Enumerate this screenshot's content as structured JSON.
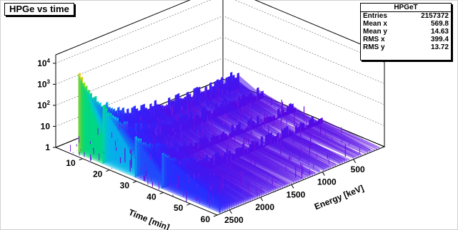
{
  "chart_data": {
    "type": "lego",
    "title": "HPGe vs time",
    "xlabel": "Energy [keV]",
    "ylabel": "Time [min]",
    "zscale": "log",
    "x_ticks": [
      "500",
      "1000",
      "1500",
      "2000",
      "2500"
    ],
    "y_ticks": [
      "10",
      "20",
      "30",
      "40",
      "50",
      "60"
    ],
    "z_ticks": [
      {
        "base": "1",
        "exp": ""
      },
      {
        "base": "10",
        "exp": ""
      },
      {
        "base": "10",
        "exp": "2"
      },
      {
        "base": "10",
        "exp": "3"
      },
      {
        "base": "10",
        "exp": "4"
      }
    ],
    "xlim": [
      0,
      2700
    ],
    "ylim": [
      0,
      60
    ],
    "zlim_log10": [
      0,
      4.4
    ],
    "stats": {
      "name": "HPGeT",
      "rows": [
        {
          "label": "Entries",
          "value": "2157372"
        },
        {
          "label": "Mean x",
          "value": "569.8"
        },
        {
          "label": "Mean y",
          "value": "14.63"
        },
        {
          "label": "RMS x",
          "value": "399.4"
        },
        {
          "label": "RMS y",
          "value": "13.72"
        }
      ]
    },
    "bands": [
      {
        "t0": 7,
        "t1": 16,
        "peak_log": 4.3
      },
      {
        "t0": 16,
        "t1": 28,
        "peak_log": 3.1
      },
      {
        "t0": 28,
        "t1": 38,
        "peak_log": 2.2
      },
      {
        "t0": 38,
        "t1": 60,
        "peak_log": 1.9
      }
    ]
  }
}
